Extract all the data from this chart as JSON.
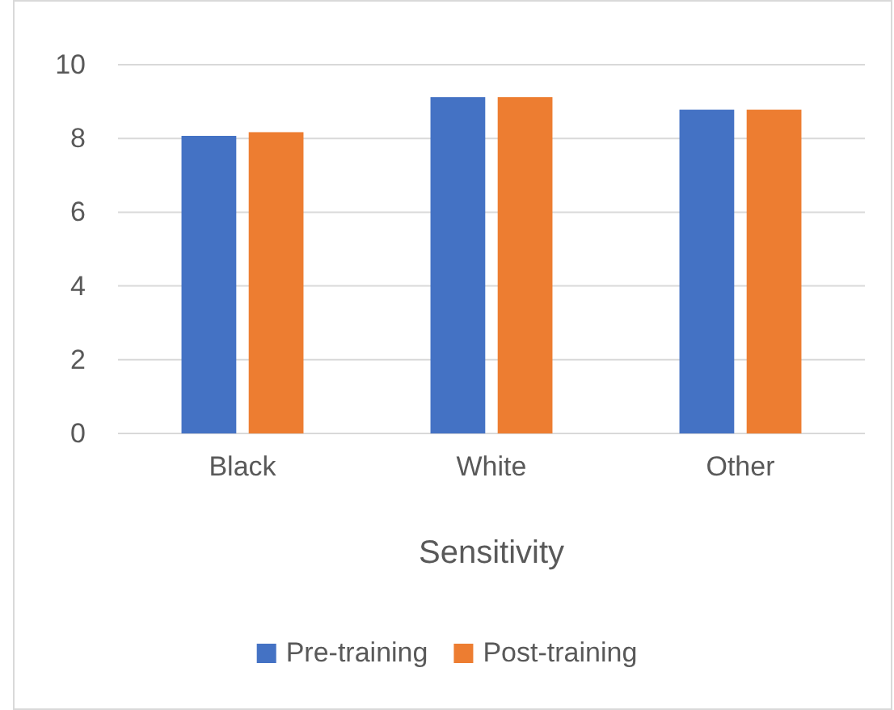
{
  "chart_data": {
    "type": "bar",
    "xlabel": "Sensitivity",
    "categories": [
      "Black",
      "White",
      "Other"
    ],
    "series": [
      {
        "name": "Pre-training",
        "color": "#4472c4",
        "values": [
          8.07,
          9.12,
          8.78
        ]
      },
      {
        "name": "Post-training",
        "color": "#ed7d31",
        "values": [
          8.17,
          9.12,
          8.78
        ]
      }
    ],
    "ylim": [
      0,
      10
    ],
    "yticks": [
      0,
      2,
      4,
      6,
      8,
      10
    ],
    "grid": "y",
    "legend": "bottom"
  }
}
